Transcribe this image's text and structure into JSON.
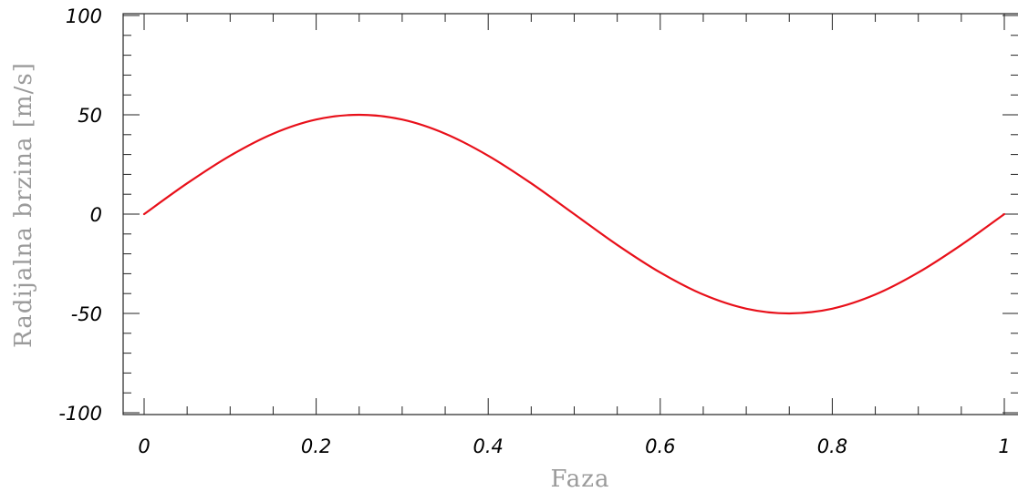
{
  "chart_data": {
    "type": "line",
    "title": "",
    "xlabel": "Faza",
    "ylabel": "Radijalna brzina [m/s]",
    "xlim": [
      0,
      1
    ],
    "ylim": [
      -100,
      100
    ],
    "x_ticks": [
      0,
      0.2,
      0.4,
      0.6,
      0.8,
      1
    ],
    "x_tick_labels": [
      "0",
      "0.2",
      "0.4",
      "0.6",
      "0.8",
      "1"
    ],
    "y_ticks": [
      100,
      50,
      0,
      -50,
      -100
    ],
    "y_tick_labels": [
      "100",
      "50",
      "0",
      "-50",
      "-100"
    ],
    "grid": false,
    "legend": "none",
    "series": [
      {
        "color": "#e8101a",
        "x": [
          0,
          0.05,
          0.1,
          0.15,
          0.2,
          0.25,
          0.3,
          0.35,
          0.4,
          0.45,
          0.5,
          0.55,
          0.6,
          0.65,
          0.7,
          0.75,
          0.8,
          0.85,
          0.9,
          0.95,
          1
        ],
        "y": [
          0,
          15.5,
          29.4,
          40.5,
          47.6,
          50,
          47.6,
          40.5,
          29.4,
          15.5,
          0,
          -15.5,
          -29.4,
          -40.5,
          -47.6,
          -50,
          -47.6,
          -40.5,
          -29.4,
          -15.5,
          0
        ]
      }
    ]
  }
}
